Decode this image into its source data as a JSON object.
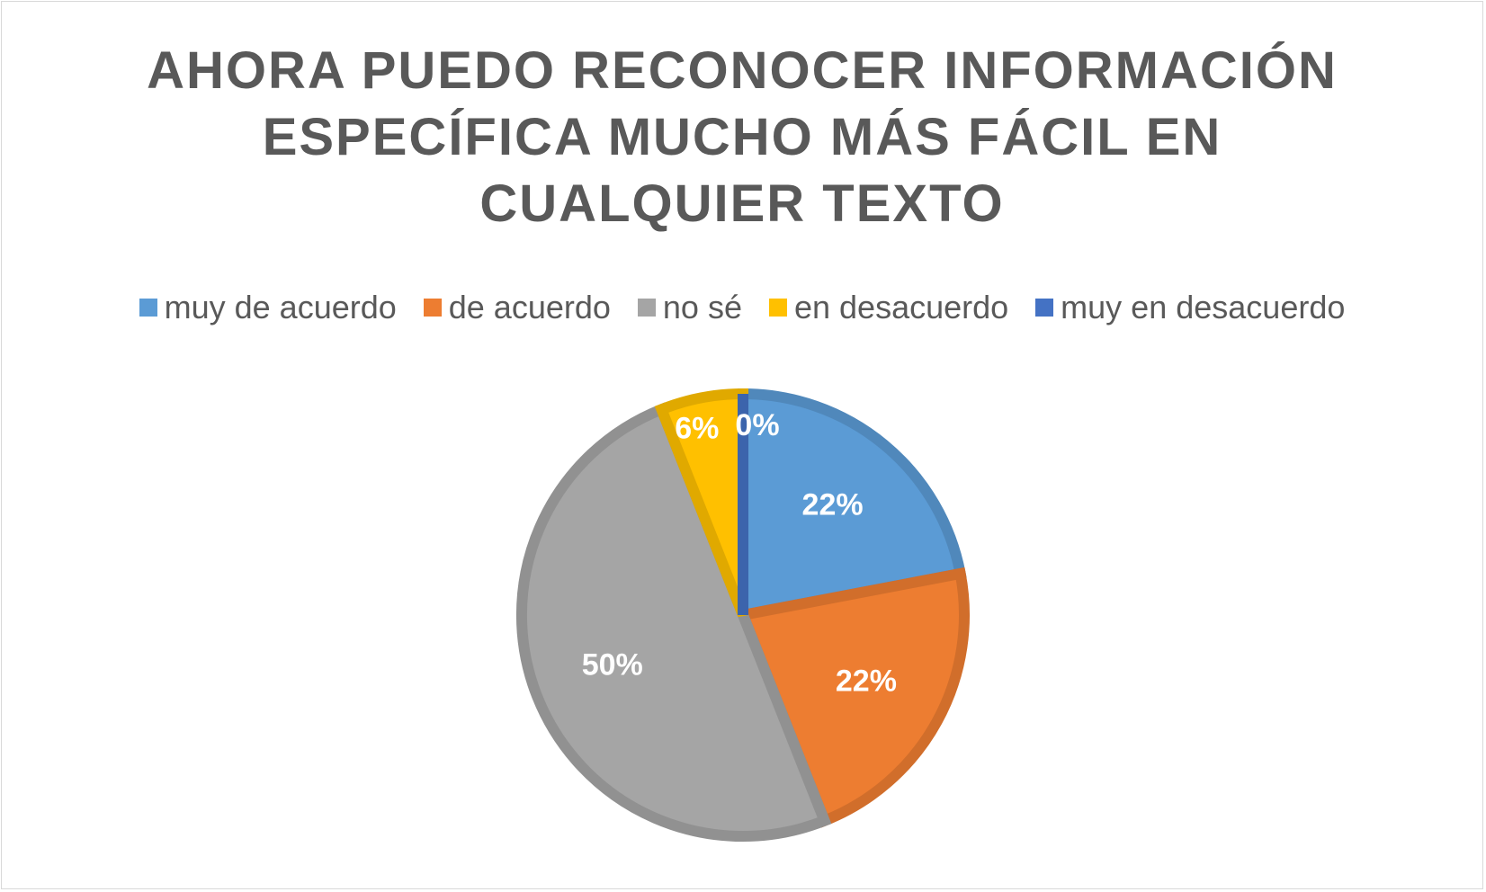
{
  "chart_data": {
    "type": "pie",
    "title_lines": [
      "AHORA PUEDO RECONOCER INFORMACIÓN",
      "ESPECÍFICA MUCHO MÁS FÁCIL EN",
      "CUALQUIER TEXTO"
    ],
    "categories": [
      "muy de acuerdo",
      "de acuerdo",
      "no sé",
      "en desacuerdo",
      "muy en desacuerdo"
    ],
    "values": [
      22,
      22,
      50,
      6,
      0
    ],
    "data_labels": [
      "22%",
      "22%",
      "50%",
      "6%",
      "0%"
    ],
    "colors": [
      "#5b9bd5",
      "#ed7d31",
      "#a5a5a5",
      "#ffc000",
      "#4472c4"
    ],
    "legend_position": "top",
    "start_angle": "12 o'clock",
    "direction": "clockwise"
  }
}
